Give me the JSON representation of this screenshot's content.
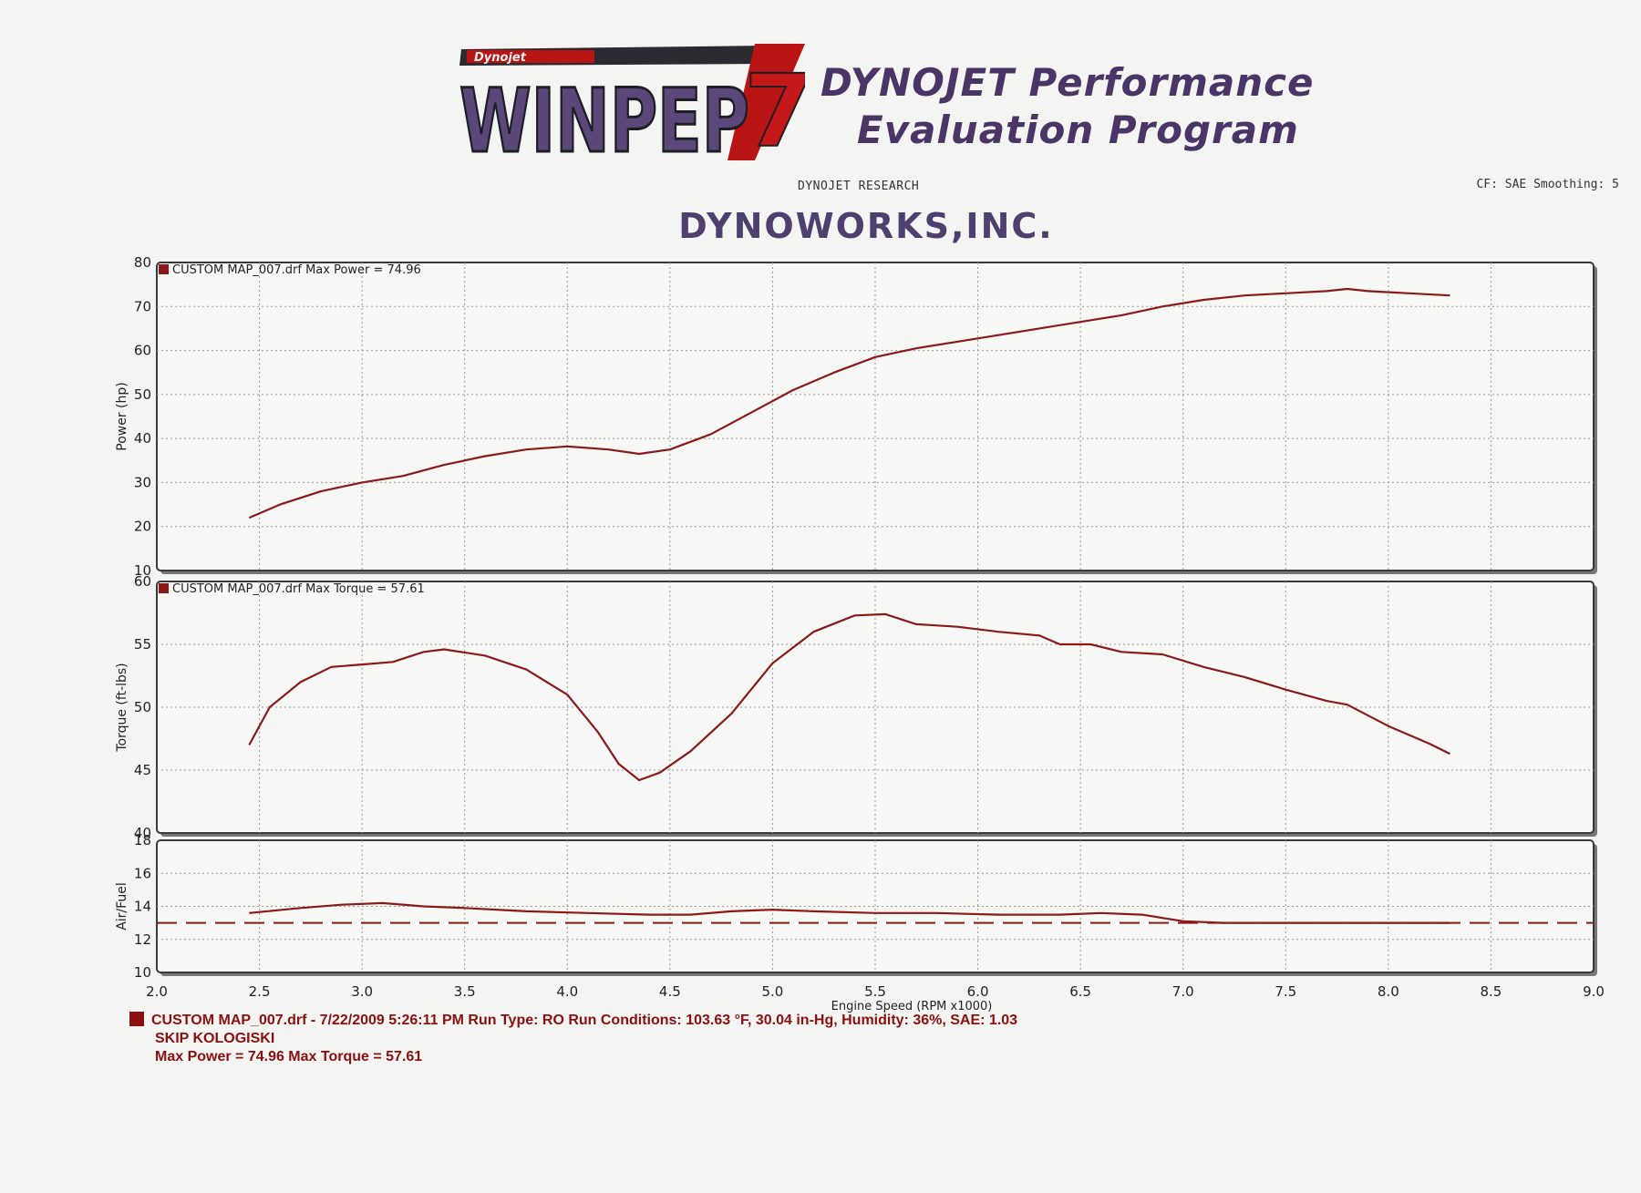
{
  "header": {
    "logo_brand": "WINPEP",
    "logo_badge": "Dynojet",
    "logo_version": "7",
    "program_title_line1": "DYNOJET Performance",
    "program_title_line2": "Evaluation Program",
    "research": "DYNOJET RESEARCH",
    "settings": "CF: SAE  Smoothing: 5",
    "company": "DYNOWORKS,INC."
  },
  "colors": {
    "curve": "#8a1a1a",
    "brand": "#4a3566",
    "grid": "#9a9a9a",
    "frame": "#3a3a3a"
  },
  "footer": {
    "run_line": "CUSTOM MAP_007.drf - 7/22/2009 5:26:11 PM  Run Type: RO  Run Conditions: 103.63 °F, 30.04 in-Hg,  Humidity:  36%, SAE: 1.03",
    "operator": "SKIP KOLOGISKI",
    "max_values": "Max Power = 74.96  Max Torque = 57.61"
  },
  "chart_data": [
    {
      "type": "line",
      "id": "power",
      "ylabel": "Power (hp)",
      "legend": "CUSTOM MAP_007.drf Max Power = 74.96",
      "xlim": [
        2.0,
        9.0
      ],
      "ylim": [
        10,
        80
      ],
      "yticks": [
        10,
        20,
        30,
        40,
        50,
        60,
        70,
        80
      ],
      "grid": true,
      "series": [
        {
          "x": [
            2.45,
            2.6,
            2.8,
            3.0,
            3.2,
            3.4,
            3.6,
            3.8,
            4.0,
            4.2,
            4.35,
            4.5,
            4.7,
            4.9,
            5.1,
            5.3,
            5.5,
            5.7,
            5.9,
            6.1,
            6.3,
            6.5,
            6.7,
            6.9,
            7.1,
            7.3,
            7.5,
            7.7,
            7.8,
            7.9,
            8.1,
            8.3
          ],
          "y": [
            22,
            25,
            28,
            30,
            31.5,
            34,
            36,
            37.5,
            38.2,
            37.5,
            36.5,
            37.5,
            41,
            46,
            51,
            55,
            58.5,
            60.5,
            62,
            63.5,
            65,
            66.5,
            68,
            70,
            71.5,
            72.5,
            73,
            73.5,
            74,
            73.5,
            73,
            72.5
          ]
        }
      ]
    },
    {
      "type": "line",
      "id": "torque",
      "ylabel": "Torque (ft-lbs)",
      "legend": "CUSTOM MAP_007.drf Max Torque = 57.61",
      "xlim": [
        2.0,
        9.0
      ],
      "ylim": [
        40,
        60
      ],
      "yticks": [
        40,
        45,
        50,
        55,
        60
      ],
      "grid": true,
      "series": [
        {
          "x": [
            2.45,
            2.55,
            2.7,
            2.85,
            3.0,
            3.15,
            3.3,
            3.4,
            3.6,
            3.8,
            4.0,
            4.15,
            4.25,
            4.35,
            4.45,
            4.6,
            4.8,
            5.0,
            5.2,
            5.4,
            5.55,
            5.7,
            5.9,
            6.1,
            6.3,
            6.4,
            6.55,
            6.7,
            6.9,
            7.1,
            7.3,
            7.5,
            7.7,
            7.8,
            8.0,
            8.2,
            8.3
          ],
          "y": [
            47,
            50,
            52,
            53.2,
            53.4,
            53.6,
            54.4,
            54.6,
            54.1,
            53,
            51,
            48,
            45.5,
            44.2,
            44.8,
            46.5,
            49.5,
            53.5,
            56,
            57.3,
            57.4,
            56.6,
            56.4,
            56,
            55.7,
            55,
            55,
            54.4,
            54.2,
            53.2,
            52.4,
            51.4,
            50.5,
            50.2,
            48.5,
            47.1,
            46.3
          ]
        }
      ]
    },
    {
      "type": "line",
      "id": "airfuel",
      "ylabel": "Air/Fuel",
      "xlabel": "Engine Speed (RPM x1000)",
      "xlim": [
        2.0,
        9.0
      ],
      "ylim": [
        10,
        18
      ],
      "yticks": [
        10,
        12,
        14,
        16,
        18
      ],
      "xticks": [
        "2.0",
        "2.5",
        "3.0",
        "3.5",
        "4.0",
        "4.5",
        "5.0",
        "5.5",
        "6.0",
        "6.5",
        "7.0",
        "7.5",
        "8.0",
        "8.5",
        "9.0"
      ],
      "grid": true,
      "reference": {
        "y": 13.0,
        "style": "dashed"
      },
      "series": [
        {
          "x": [
            2.45,
            2.7,
            2.9,
            3.1,
            3.3,
            3.5,
            3.8,
            4.1,
            4.4,
            4.6,
            4.8,
            5.0,
            5.2,
            5.5,
            5.8,
            6.1,
            6.4,
            6.6,
            6.8,
            7.0,
            7.2,
            7.5,
            7.8,
            8.0,
            8.3
          ],
          "y": [
            13.6,
            13.9,
            14.1,
            14.2,
            14.0,
            13.9,
            13.7,
            13.6,
            13.5,
            13.5,
            13.7,
            13.8,
            13.7,
            13.6,
            13.6,
            13.5,
            13.5,
            13.6,
            13.5,
            13.1,
            13.0,
            13.0,
            13.0,
            13.0,
            13.0
          ]
        }
      ]
    }
  ]
}
